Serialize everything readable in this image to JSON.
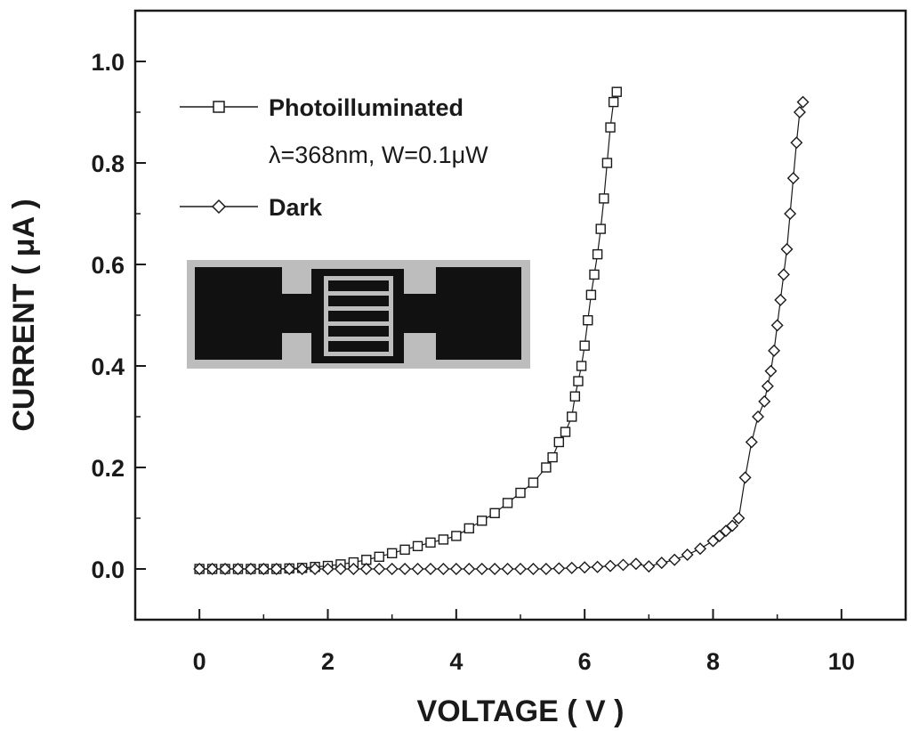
{
  "chart_data": {
    "type": "scatter",
    "xlabel": "VOLTAGE ( V )",
    "ylabel": "CURRENT ( μA )",
    "xlim": [
      -1,
      11
    ],
    "ylim": [
      -0.1,
      1.1
    ],
    "xticks": [
      0,
      2,
      4,
      6,
      8,
      10
    ],
    "yticks": [
      0.0,
      0.2,
      0.4,
      0.6,
      0.8,
      1.0
    ],
    "xtick_labels": [
      "0",
      "2",
      "4",
      "6",
      "8",
      "10"
    ],
    "ytick_labels": [
      "0.0",
      "0.2",
      "0.4",
      "0.6",
      "0.8",
      "1.0"
    ],
    "grid": false,
    "legend_position": "top-left",
    "annotation": "λ=368nm, W=0.1μW",
    "inset": "photo of interdigitated electrode device",
    "series": [
      {
        "name": "Photoilluminated",
        "marker": "square",
        "x": [
          0,
          0.2,
          0.4,
          0.6,
          0.8,
          1.0,
          1.2,
          1.4,
          1.6,
          1.8,
          2.0,
          2.2,
          2.4,
          2.6,
          2.8,
          3.0,
          3.2,
          3.4,
          3.6,
          3.8,
          4.0,
          4.2,
          4.4,
          4.6,
          4.8,
          5.0,
          5.2,
          5.4,
          5.5,
          5.6,
          5.7,
          5.8,
          5.85,
          5.9,
          5.95,
          6.0,
          6.05,
          6.1,
          6.15,
          6.2,
          6.25,
          6.3,
          6.35,
          6.4,
          6.45,
          6.5
        ],
        "y": [
          0,
          0,
          0,
          0,
          0,
          0,
          0,
          0.001,
          0.002,
          0.004,
          0.006,
          0.009,
          0.013,
          0.018,
          0.024,
          0.031,
          0.038,
          0.045,
          0.052,
          0.058,
          0.065,
          0.08,
          0.095,
          0.11,
          0.13,
          0.15,
          0.17,
          0.2,
          0.22,
          0.25,
          0.27,
          0.3,
          0.34,
          0.37,
          0.4,
          0.44,
          0.49,
          0.54,
          0.58,
          0.62,
          0.67,
          0.73,
          0.8,
          0.87,
          0.92,
          0.94
        ]
      },
      {
        "name": "Dark",
        "marker": "diamond",
        "x": [
          0,
          0.2,
          0.4,
          0.6,
          0.8,
          1.0,
          1.2,
          1.4,
          1.6,
          1.8,
          2.0,
          2.2,
          2.4,
          2.6,
          2.8,
          3.0,
          3.2,
          3.4,
          3.6,
          3.8,
          4.0,
          4.2,
          4.4,
          4.6,
          4.8,
          5.0,
          5.2,
          5.4,
          5.6,
          5.8,
          6.0,
          6.2,
          6.4,
          6.6,
          6.8,
          7.0,
          7.2,
          7.4,
          7.6,
          7.8,
          8.0,
          8.1,
          8.2,
          8.3,
          8.4,
          8.5,
          8.6,
          8.7,
          8.8,
          8.85,
          8.9,
          8.95,
          9.0,
          9.05,
          9.1,
          9.15,
          9.2,
          9.25,
          9.3,
          9.35,
          9.4
        ],
        "y": [
          0,
          0,
          0,
          0,
          0,
          0,
          0,
          0,
          0,
          0,
          0,
          0,
          0,
          0,
          0,
          0,
          0,
          0,
          0,
          0,
          0,
          0,
          0,
          0,
          0,
          0,
          0,
          0,
          0.001,
          0.002,
          0.003,
          0.004,
          0.006,
          0.008,
          0.01,
          0.005,
          0.012,
          0.018,
          0.028,
          0.04,
          0.055,
          0.065,
          0.075,
          0.085,
          0.1,
          0.18,
          0.25,
          0.3,
          0.33,
          0.36,
          0.39,
          0.43,
          0.48,
          0.53,
          0.58,
          0.63,
          0.7,
          0.77,
          0.84,
          0.9,
          0.92
        ]
      }
    ]
  }
}
